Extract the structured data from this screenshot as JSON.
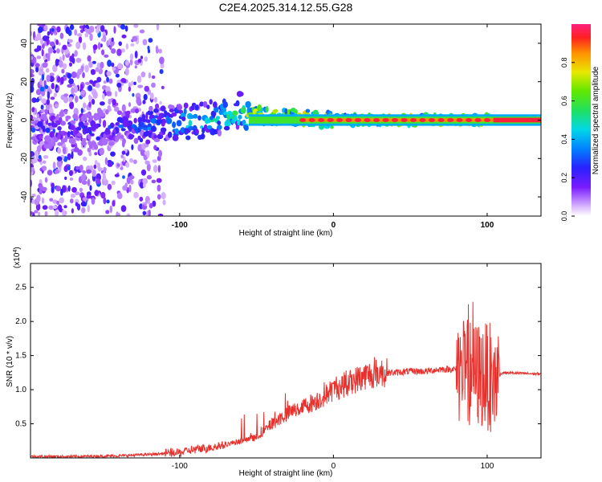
{
  "figure_title": "C2E4.2025.314.12.55.G28",
  "chart_data": [
    {
      "type": "heatmap",
      "title": "C2E4.2025.314.12.55.G28",
      "xlabel": "Height of straight line (km)",
      "ylabel": "Frequency (Hz)",
      "xlim": [
        -197,
        135
      ],
      "ylim": [
        -50,
        50
      ],
      "x_ticks": [
        -100,
        0,
        100
      ],
      "y_ticks": [
        -40,
        -20,
        0,
        20,
        40
      ],
      "x_tick_labels": [
        "-100",
        "0",
        "100"
      ],
      "y_tick_labels": [
        "-40",
        "-20",
        "0",
        "20",
        "40"
      ],
      "colorbar": {
        "label": "Normalized spectral amplitude",
        "range": [
          0,
          1
        ],
        "ticks": [
          0.0,
          0.2,
          0.4,
          0.6,
          0.8
        ],
        "tick_labels": [
          "0.0",
          "0.2",
          "0.4",
          "0.6",
          "0.8"
        ]
      },
      "ridge": {
        "description_points_x": [
          -190,
          -160,
          -130,
          -110,
          -90,
          -70,
          -60,
          -55,
          -40,
          -20,
          0,
          20,
          40,
          60,
          80,
          100,
          104,
          135
        ],
        "frequency_hz": [
          -5,
          -4,
          -3,
          -2,
          -1,
          2,
          5,
          3,
          2,
          1,
          0,
          0,
          0,
          0,
          0,
          0,
          0,
          0
        ],
        "amplitude": [
          0.3,
          0.3,
          0.35,
          0.45,
          0.5,
          0.55,
          0.6,
          0.8,
          0.85,
          0.9,
          0.9,
          0.95,
          0.95,
          0.95,
          0.95,
          0.9,
          0.95,
          0.95
        ]
      },
      "noise_region_x": [
        -197,
        -110
      ]
    },
    {
      "type": "line",
      "xlabel": "Height of straight line (km)",
      "ylabel": "SNR (10 * v/v)",
      "exponent_label": "(x10",
      "exponent_sup": "4",
      "exponent_close": ")",
      "xlim": [
        -197,
        135
      ],
      "ylim": [
        0,
        2.85
      ],
      "x_ticks": [
        -100,
        0,
        100
      ],
      "y_ticks": [
        0.5,
        1.0,
        1.5,
        2.0,
        2.5
      ],
      "x_tick_labels": [
        "-100",
        "0",
        "100"
      ],
      "y_tick_labels": [
        "0.5",
        "1.0",
        "1.5",
        "2.0",
        "2.5"
      ],
      "color": "#e8302c",
      "series": [
        {
          "name": "SNR",
          "x": [
            -197,
            -170,
            -140,
            -120,
            -100,
            -90,
            -80,
            -70,
            -60,
            -50,
            -40,
            -30,
            -20,
            -10,
            0,
            10,
            20,
            30,
            40,
            50,
            60,
            70,
            80,
            90,
            95,
            100,
            105,
            110,
            120,
            135
          ],
          "y": [
            0.02,
            0.02,
            0.03,
            0.05,
            0.08,
            0.12,
            0.15,
            0.2,
            0.25,
            0.3,
            0.5,
            0.65,
            0.75,
            0.85,
            1.0,
            1.1,
            1.2,
            1.25,
            1.25,
            1.27,
            1.27,
            1.3,
            1.3,
            1.25,
            1.2,
            1.2,
            1.15,
            1.25,
            1.24,
            1.23
          ]
        }
      ]
    }
  ]
}
